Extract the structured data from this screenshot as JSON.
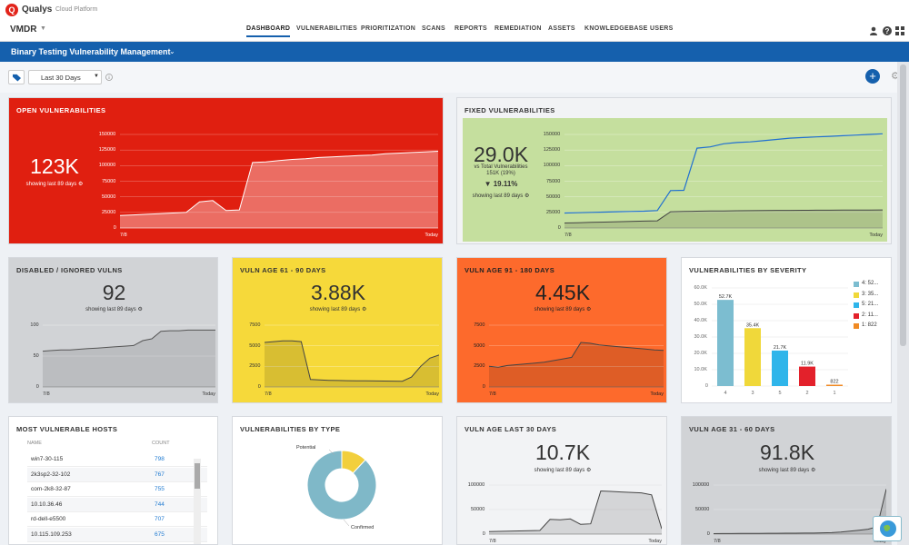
{
  "brand": {
    "name": "Qualys",
    "tagline": "Cloud Platform",
    "module": "VMDR"
  },
  "nav": [
    "DASHBOARD",
    "VULNERABILITIES",
    "PRIORITIZATION",
    "SCANS",
    "REPORTS",
    "REMEDIATION",
    "ASSETS",
    "KNOWLEDGEBASE",
    "USERS"
  ],
  "dashboard": {
    "title": "Binary Testing Vulnerability Management",
    "date_range": "Last 30 Days"
  },
  "cards": {
    "open": {
      "title": "OPEN VULNERABILITIES",
      "value": "123K",
      "showing": "showing last 89 days",
      "yticks": [
        "150000",
        "125000",
        "100000",
        "75000",
        "50000",
        "25000",
        "0"
      ],
      "x_start": "7/8",
      "x_end": "Today",
      "series": [
        20000,
        21000,
        22000,
        23000,
        24000,
        25000,
        42000,
        44000,
        28000,
        29000,
        105000,
        106000,
        108000,
        110000,
        111000,
        113000,
        114000,
        115000,
        116000,
        117000,
        119000,
        120000,
        121000,
        122000,
        123000
      ]
    },
    "fixed": {
      "title": "FIXED VULNERABILITIES",
      "value": "29.0K",
      "vs_total": "vs Total Vulnerabilities",
      "total": "151K (19%)",
      "change": "19.11%",
      "showing": "showing last 89 days",
      "yticks": [
        "150000",
        "125000",
        "100000",
        "75000",
        "50000",
        "25000",
        "0"
      ],
      "x_start": "7/8",
      "x_end": "Today",
      "total_series": [
        24000,
        24500,
        25000,
        25500,
        26000,
        26500,
        27000,
        28000,
        60000,
        60500,
        128000,
        130000,
        135000,
        137000,
        138000,
        140000,
        142000,
        144000,
        145000,
        146000,
        147000,
        148000,
        149000,
        150000,
        151000
      ],
      "fixed_series": [
        8000,
        8500,
        9000,
        9500,
        10000,
        10500,
        11000,
        11500,
        26000,
        26500,
        27000,
        27200,
        27400,
        27600,
        27800,
        28000,
        28200,
        28300,
        28400,
        28500,
        28600,
        28700,
        28800,
        28900,
        29000
      ]
    },
    "disabled": {
      "title": "DISABLED / IGNORED VULNS",
      "value": "92",
      "showing": "showing last 89 days",
      "yticks": [
        "100",
        "50",
        "0"
      ],
      "x_start": "7/8",
      "x_end": "Today",
      "series": [
        58,
        59,
        60,
        60,
        61,
        62,
        63,
        64,
        65,
        66,
        67,
        75,
        78,
        90,
        91,
        91,
        92,
        92,
        92,
        92
      ]
    },
    "age61": {
      "title": "VULN AGE 61 - 90 DAYS",
      "value": "3.88K",
      "showing": "showing last 89 days",
      "yticks": [
        "7500",
        "5000",
        "2500",
        "0"
      ],
      "x_start": "7/8",
      "x_end": "Today",
      "series": [
        5400,
        5500,
        5600,
        5600,
        5500,
        900,
        850,
        800,
        780,
        760,
        750,
        740,
        730,
        720,
        710,
        700,
        1200,
        2500,
        3500,
        3880
      ]
    },
    "age91": {
      "title": "VULN AGE 91 - 180 DAYS",
      "value": "4.45K",
      "showing": "showing last 89 days",
      "yticks": [
        "7500",
        "5000",
        "2500",
        "0"
      ],
      "x_start": "7/8",
      "x_end": "Today",
      "series": [
        2500,
        2400,
        2600,
        2700,
        2800,
        2900,
        3000,
        3200,
        3400,
        3600,
        5400,
        5300,
        5100,
        5000,
        4900,
        4800,
        4700,
        4600,
        4500,
        4450
      ]
    },
    "age30": {
      "title": "VULN AGE LAST 30 DAYS",
      "value": "10.7K",
      "showing": "showing last 89 days",
      "yticks": [
        "100000",
        "50000",
        "0"
      ],
      "x_start": "7/8",
      "x_end": "Today",
      "series": [
        5000,
        5500,
        6000,
        6500,
        7000,
        7500,
        30000,
        29000,
        31000,
        20000,
        21000,
        88000,
        87000,
        86000,
        85000,
        84000,
        80000,
        10700
      ]
    },
    "age31": {
      "title": "VULN AGE 31 - 60 DAYS",
      "value": "91.8K",
      "showing": "showing last 89 days",
      "yticks": [
        "100000",
        "50000",
        "0"
      ],
      "x_start": "7/8",
      "x_end": "Today",
      "series": [
        1000,
        1100,
        1200,
        1300,
        1400,
        1500,
        1600,
        1700,
        1800,
        1900,
        2000,
        2100,
        2500,
        3000,
        4000,
        6000,
        8000,
        10000,
        15000,
        91800
      ]
    },
    "severity": {
      "title": "VULNERABILITIES BY SEVERITY",
      "legend": [
        "4: 52...",
        "3: 35...",
        "5: 21...",
        "2: 11...",
        "1: 822"
      ],
      "yticks": [
        "60.0K",
        "50.0K",
        "40.0K",
        "30.0K",
        "20.0K",
        "10.0K",
        "0"
      ]
    },
    "hosts": {
      "title": "MOST VULNERABLE HOSTS",
      "col_name": "NAME",
      "col_count": "COUNT",
      "rows": [
        {
          "name": "win7-30-115",
          "count": "798"
        },
        {
          "name": "2k3sp2-32-102",
          "count": "767"
        },
        {
          "name": "com-2k8-32-87",
          "count": "755"
        },
        {
          "name": "10.10.36.46",
          "count": "744"
        },
        {
          "name": "rd-dell-e5500",
          "count": "707"
        },
        {
          "name": "10.115.109.253",
          "count": "675"
        }
      ]
    },
    "bytype": {
      "title": "VULNERABILITIES BY TYPE",
      "label_potential": "Potential",
      "label_confirmed": "Confirmed"
    }
  },
  "chart_data": [
    {
      "type": "bar",
      "title": "VULNERABILITIES BY SEVERITY",
      "categories": [
        "4",
        "3",
        "5",
        "2",
        "1"
      ],
      "values": [
        52700,
        35400,
        21700,
        11900,
        822
      ],
      "labels": [
        "52.7K",
        "35.4K",
        "21.7K",
        "11.9K",
        "822"
      ],
      "colors": [
        "#7cbdd0",
        "#f0d83a",
        "#2fb5ea",
        "#e3212b",
        "#f08a24"
      ],
      "ylim": [
        0,
        60000
      ]
    },
    {
      "type": "pie",
      "title": "VULNERABILITIES BY TYPE",
      "categories": [
        "Potential",
        "Confirmed"
      ],
      "values": [
        12,
        88
      ],
      "colors": [
        "#f2cf3c",
        "#7fb8c8"
      ]
    }
  ]
}
